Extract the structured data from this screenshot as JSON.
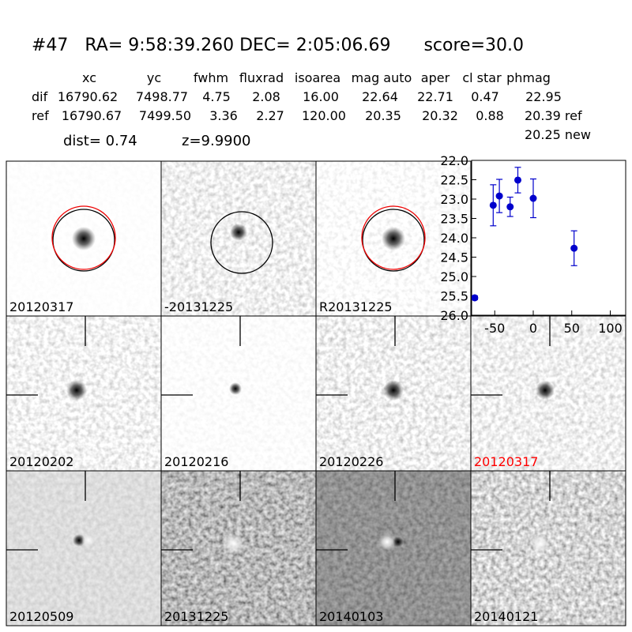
{
  "header": {
    "title": "#47   RA= 9:58:39.260 DEC= 2:05:06.69      score=30.0"
  },
  "table": {
    "columns": [
      "xc",
      "yc",
      "fwhm",
      "fluxrad",
      "isoarea",
      "mag auto",
      "aper",
      "cl star",
      "phmag"
    ],
    "rows": [
      [
        "dif",
        "16790.62",
        "7498.77",
        "4.75",
        "2.08",
        "16.00",
        "22.64",
        "22.71",
        "0.47",
        "22.95"
      ],
      [
        "ref",
        "16790.67",
        "7499.50",
        "3.36",
        "2.27",
        "120.00",
        "20.35",
        "20.32",
        "0.88",
        "20.39 ref"
      ]
    ],
    "extra": "20.25 new",
    "dist": "dist=  0.74",
    "z": "z=9.9900"
  },
  "stamps": [
    {
      "label": "20120317"
    },
    {
      "label": "-20131225"
    },
    {
      "label": "R20131225"
    },
    {
      "label": "20120202"
    },
    {
      "label": "20120216"
    },
    {
      "label": "20120226"
    },
    {
      "label": "20120317",
      "color": "#ff0000"
    },
    {
      "label": "20120509"
    },
    {
      "label": "20131225"
    },
    {
      "label": "20140103"
    },
    {
      "label": "20140121"
    }
  ],
  "chart_data": {
    "type": "scatter",
    "x": [
      -76,
      -52,
      -44,
      -30,
      -20,
      0,
      53
    ],
    "values": [
      25.55,
      23.16,
      22.92,
      23.2,
      22.51,
      22.98,
      24.27
    ],
    "errors": [
      0.05,
      0.53,
      0.43,
      0.25,
      0.33,
      0.5,
      0.45
    ],
    "color": "#0000cc",
    "xlim": [
      -80,
      120
    ],
    "ylim": [
      26,
      22
    ],
    "xticks": [
      -50,
      0,
      50,
      100
    ],
    "yticks": [
      {
        "value": 22,
        "label": "22.0"
      },
      {
        "value": 22.5,
        "label": "22.5"
      },
      {
        "value": 23,
        "label": "23.0"
      },
      {
        "value": 23.5,
        "label": "23.5"
      },
      {
        "value": 24,
        "label": "24.0"
      },
      {
        "value": 24.5,
        "label": "24.5"
      },
      {
        "value": 25,
        "label": "25.0"
      },
      {
        "value": 25.5,
        "label": "25.5"
      },
      {
        "value": 26,
        "label": "26.0"
      }
    ]
  }
}
